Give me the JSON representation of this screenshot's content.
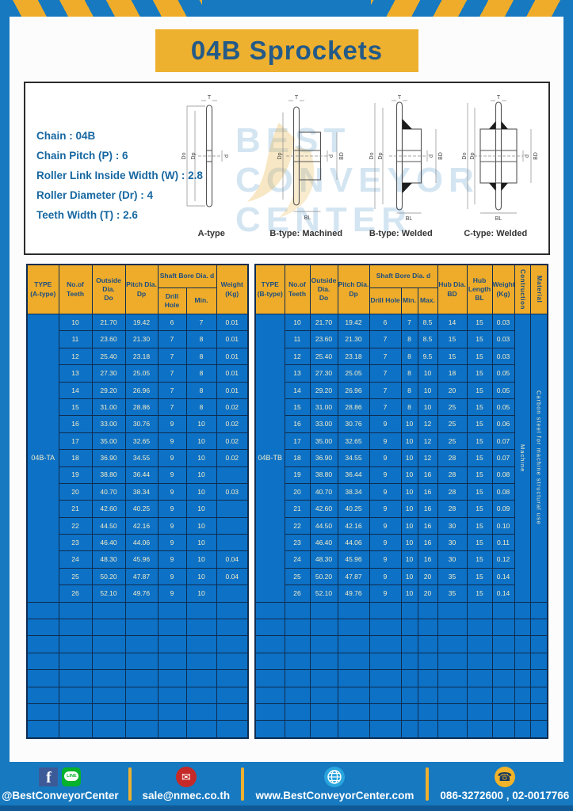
{
  "header": {
    "title": "04B Sprockets"
  },
  "colors": {
    "frame_blue": "#1779c0",
    "cell_blue": "#0d71c5",
    "accent_yellow": "#eeac2a",
    "border_navy": "#0e2c50",
    "header_text_blue": "#1d4d80",
    "title_text_blue": "#235a88"
  },
  "specs": {
    "lines": [
      "Chain : 04B",
      "Chain Pitch (P) : 6",
      "Roller Link Inside Width (W) : 2.8",
      "Roller Diameter (Dr) : 4",
      "Teeth Width (T) : 2.6"
    ]
  },
  "watermark": {
    "line1": "BEST",
    "line2": "CONVEYOR",
    "line3": "CENTER"
  },
  "diagrams": {
    "captions": [
      "A-type",
      "B-type: Machined",
      "B-type: Welded",
      "C-type: Welded"
    ],
    "dims": {
      "t": "T",
      "do": "Do",
      "dp": "Dp",
      "d": "d",
      "bd": "BD",
      "bl": "BL"
    }
  },
  "tables": {
    "a": {
      "headers": {
        "type": "TYPE\n(A-type)",
        "teeth": "No.of\nTeeth",
        "outside": "Outside\nDia.\nDo",
        "pitch": "Pitch Dia.\nDp",
        "shaft": "Shaft Bore Dia. d",
        "drill": "Drill Hole",
        "min": "Min.",
        "weight": "Weight\n(Kg)"
      },
      "columns": 7,
      "empty_rows": 8,
      "merges": [
        {
          "col": 0,
          "text": "04B-TA",
          "name": "type-cell-a",
          "vertical": false
        }
      ],
      "rows": [
        [
          "10",
          "21.70",
          "19.42",
          "6",
          "7",
          "0.01"
        ],
        [
          "11",
          "23.60",
          "21.30",
          "7",
          "8",
          "0.01"
        ],
        [
          "12",
          "25.40",
          "23.18",
          "7",
          "8",
          "0.01"
        ],
        [
          "13",
          "27.30",
          "25.05",
          "7",
          "8",
          "0.01"
        ],
        [
          "14",
          "29.20",
          "26.96",
          "7",
          "8",
          "0.01"
        ],
        [
          "15",
          "31.00",
          "28.86",
          "7",
          "8",
          "0.02"
        ],
        [
          "16",
          "33.00",
          "30.76",
          "9",
          "10",
          "0.02"
        ],
        [
          "17",
          "35.00",
          "32.65",
          "9",
          "10",
          "0.02"
        ],
        [
          "18",
          "36.90",
          "34.55",
          "9",
          "10",
          "0.02"
        ],
        [
          "19",
          "38.80",
          "36.44",
          "9",
          "10",
          ""
        ],
        [
          "20",
          "40.70",
          "38.34",
          "9",
          "10",
          "0.03"
        ],
        [
          "21",
          "42.60",
          "40.25",
          "9",
          "10",
          ""
        ],
        [
          "22",
          "44.50",
          "42.16",
          "9",
          "10",
          ""
        ],
        [
          "23",
          "46.40",
          "44.06",
          "9",
          "10",
          ""
        ],
        [
          "24",
          "48.30",
          "45.96",
          "9",
          "10",
          "0.04"
        ],
        [
          "25",
          "50.20",
          "47.87",
          "9",
          "10",
          "0.04"
        ],
        [
          "26",
          "52.10",
          "49.76",
          "9",
          "10",
          ""
        ]
      ]
    },
    "b": {
      "headers": {
        "type": "TYPE\n(B-type)",
        "teeth": "No.of\nTeeth",
        "outside": "Outside\nDia.\nDo",
        "pitch": "Pitch Dia.\nDp",
        "shaft": "Shaft Bore Dia. d",
        "drill": "Drill Hole",
        "min": "Min.",
        "max": "Max.",
        "hub_dia": "Hub Dia.\nBD",
        "hub_len": "Hub\nLength\nBL",
        "weight": "Weight\n(Kg)",
        "construction": "Contruction",
        "material": "Material"
      },
      "columns": 12,
      "empty_rows": 8,
      "merges": [
        {
          "col": 0,
          "text": "04B-TB",
          "name": "type-cell-b",
          "vertical": false
        },
        {
          "col": 10,
          "text": "Machine",
          "name": "construction-cell",
          "vertical": true
        },
        {
          "col": 11,
          "text": "Carbon steel for machine structural use",
          "name": "material-cell",
          "vertical": true
        }
      ],
      "rows": [
        [
          "10",
          "21.70",
          "19.42",
          "6",
          "7",
          "8.5",
          "14",
          "15",
          "0.03"
        ],
        [
          "11",
          "23.60",
          "21.30",
          "7",
          "8",
          "8.5",
          "15",
          "15",
          "0.03"
        ],
        [
          "12",
          "25.40",
          "23.18",
          "7",
          "8",
          "9.5",
          "15",
          "15",
          "0.03"
        ],
        [
          "13",
          "27.30",
          "25.05",
          "7",
          "8",
          "10",
          "18",
          "15",
          "0.05"
        ],
        [
          "14",
          "29.20",
          "26.96",
          "7",
          "8",
          "10",
          "20",
          "15",
          "0.05"
        ],
        [
          "15",
          "31.00",
          "28.86",
          "7",
          "8",
          "10",
          "25",
          "15",
          "0.05"
        ],
        [
          "16",
          "33.00",
          "30.76",
          "9",
          "10",
          "12",
          "25",
          "15",
          "0.06"
        ],
        [
          "17",
          "35.00",
          "32.65",
          "9",
          "10",
          "12",
          "25",
          "15",
          "0.07"
        ],
        [
          "18",
          "36.90",
          "34.55",
          "9",
          "10",
          "12",
          "28",
          "15",
          "0.07"
        ],
        [
          "19",
          "38.80",
          "36.44",
          "9",
          "10",
          "16",
          "28",
          "15",
          "0.08"
        ],
        [
          "20",
          "40.70",
          "38.34",
          "9",
          "10",
          "16",
          "28",
          "15",
          "0.08"
        ],
        [
          "21",
          "42.60",
          "40.25",
          "9",
          "10",
          "16",
          "28",
          "15",
          "0.09"
        ],
        [
          "22",
          "44.50",
          "42.16",
          "9",
          "10",
          "16",
          "30",
          "15",
          "0.10"
        ],
        [
          "23",
          "46.40",
          "44.06",
          "9",
          "10",
          "16",
          "30",
          "15",
          "0.11"
        ],
        [
          "24",
          "48.30",
          "45.96",
          "9",
          "10",
          "16",
          "30",
          "15",
          "0.12"
        ],
        [
          "25",
          "50.20",
          "47.87",
          "9",
          "10",
          "20",
          "35",
          "15",
          "0.14"
        ],
        [
          "26",
          "52.10",
          "49.76",
          "9",
          "10",
          "20",
          "35",
          "15",
          "0.14"
        ]
      ]
    }
  },
  "footer": {
    "social": {
      "label": "@BestConveyorCenter",
      "fb_glyph": "f",
      "line_glyph": "LINE"
    },
    "email": {
      "label": "sale@nmec.co.th",
      "glyph": "✉"
    },
    "website": {
      "label": "www.BestConveyorCenter.com"
    },
    "phone": {
      "label": "086-3272600 , 02-0017766",
      "glyph": "☎"
    }
  }
}
